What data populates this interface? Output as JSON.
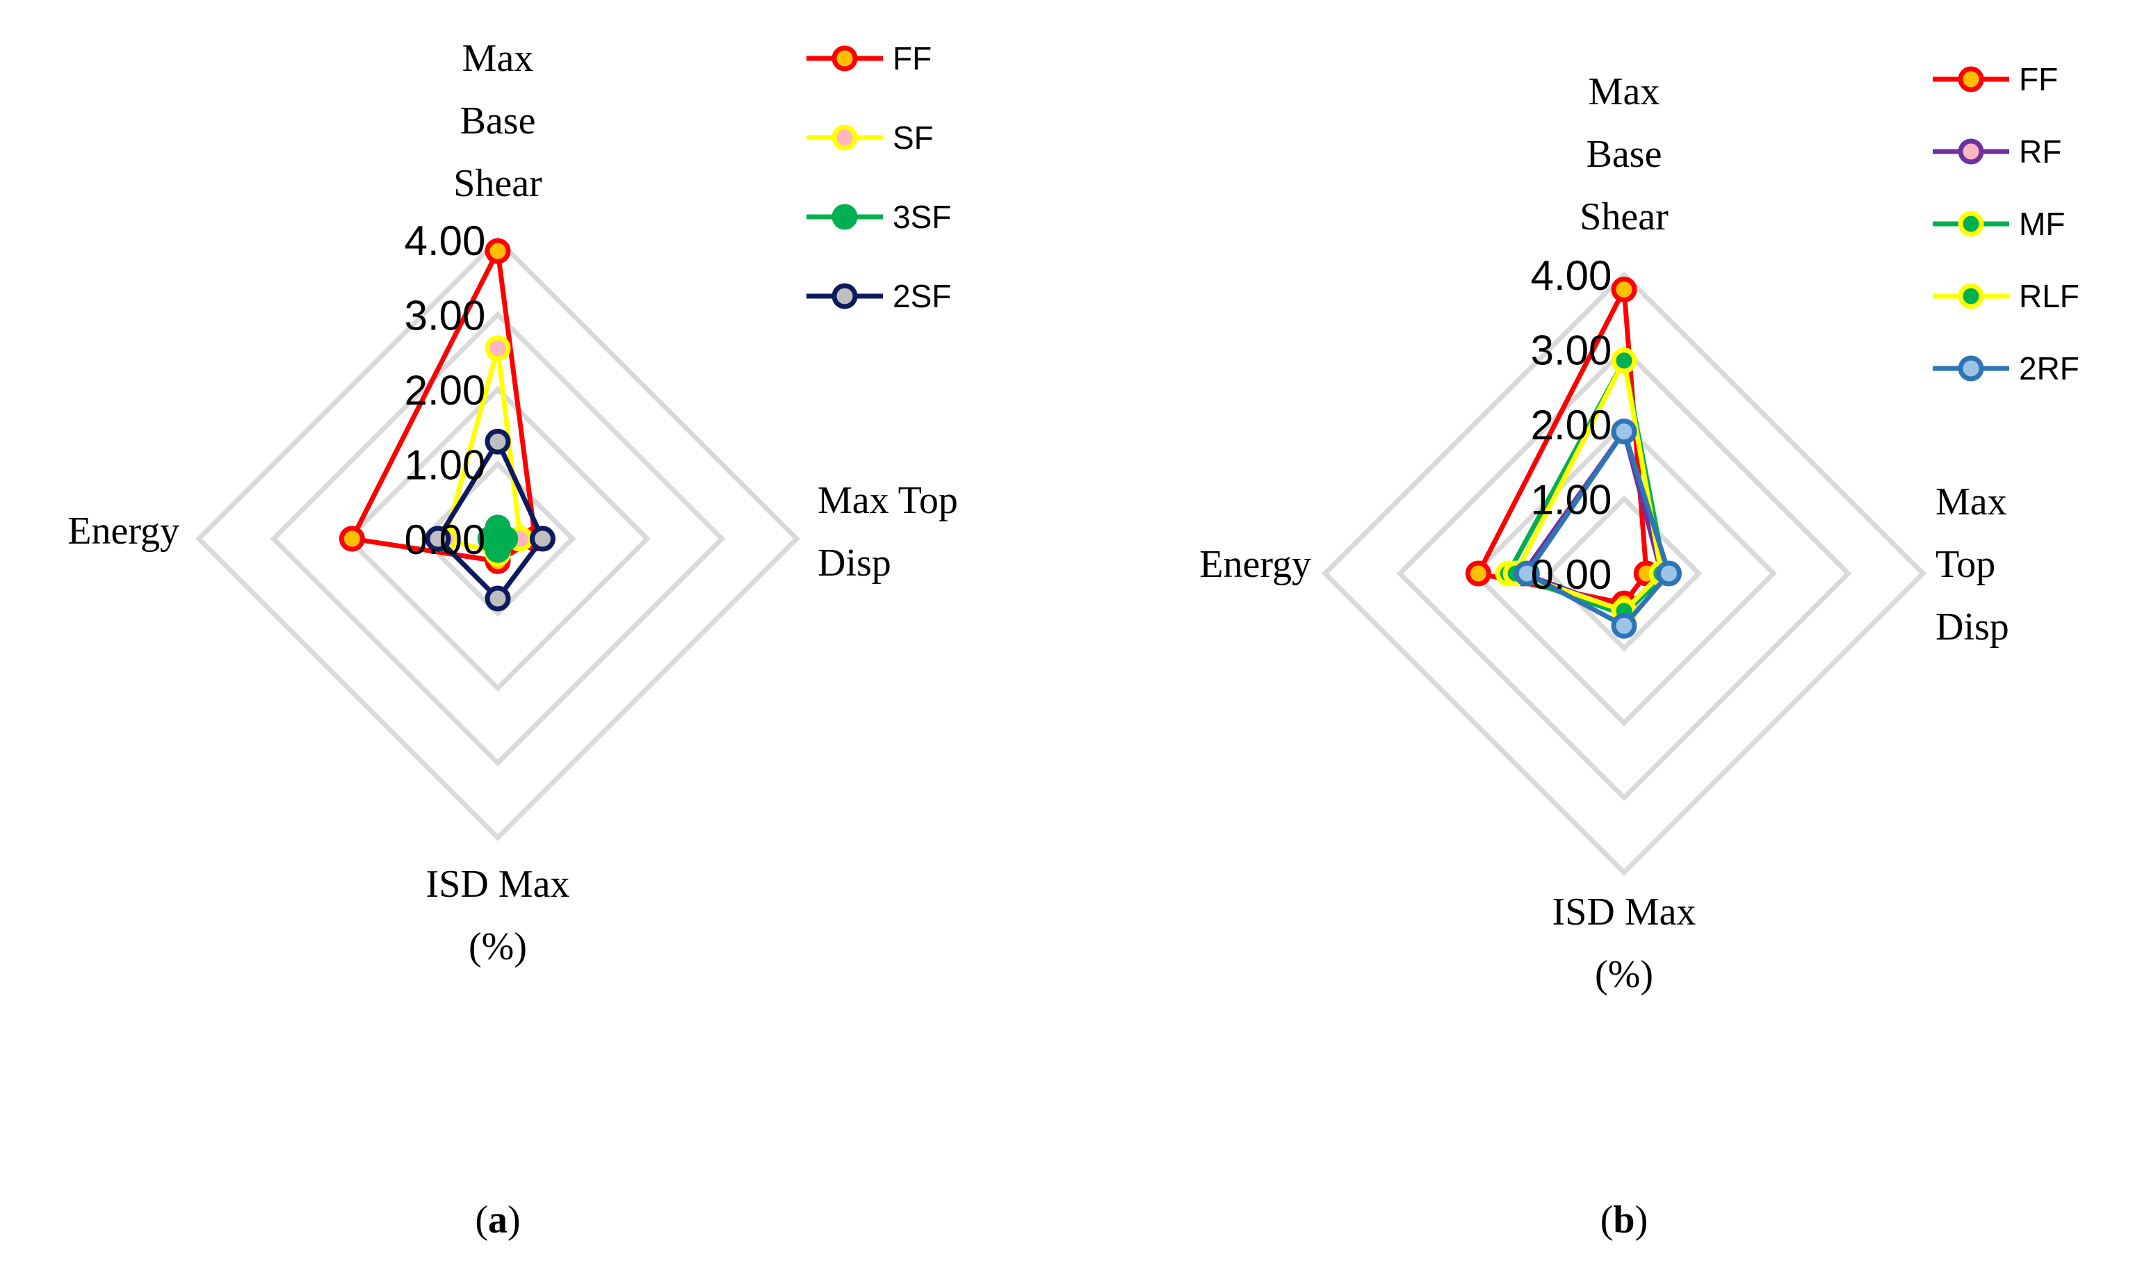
{
  "chart_data": [
    {
      "type": "radar",
      "panel_label": "a",
      "axes": [
        "Max\nBase\nShear",
        "Max Top\nDisp",
        "ISD Max\n(%)",
        "Energy"
      ],
      "rlim": [
        0,
        4
      ],
      "tick_labels": [
        "0.00",
        "1.00",
        "2.00",
        "3.00",
        "4.00"
      ],
      "grid": true,
      "legend_position": "top-right",
      "series": [
        {
          "name": "FF",
          "values": [
            3.85,
            0.5,
            0.3,
            1.95
          ],
          "line_color": "#ff0000",
          "marker_fill": "#ffc000",
          "marker_edge": "#ff0000"
        },
        {
          "name": "SF",
          "values": [
            2.55,
            0.3,
            0.2,
            0.7
          ],
          "line_color": "#ffff00",
          "marker_fill": "#ffb6c1",
          "marker_edge": "#ffff00"
        },
        {
          "name": "3SF",
          "values": [
            0.15,
            0.1,
            0.15,
            0.1
          ],
          "line_color": "#00b050",
          "marker_fill": "#00b050",
          "marker_edge": "#00b050"
        },
        {
          "name": "2SF",
          "values": [
            1.3,
            0.6,
            0.8,
            0.8
          ],
          "line_color": "#0d1b5e",
          "marker_fill": "#bfbfbf",
          "marker_edge": "#0d1b5e"
        }
      ]
    },
    {
      "type": "radar",
      "panel_label": "b",
      "axes": [
        "Max\nBase\nShear",
        "Max\nTop\nDisp",
        "ISD Max\n(%)",
        "Energy"
      ],
      "rlim": [
        0,
        4
      ],
      "tick_labels": [
        "0.00",
        "1.00",
        "2.00",
        "3.00",
        "4.00"
      ],
      "grid": true,
      "legend_position": "top-right",
      "series": [
        {
          "name": "FF",
          "values": [
            3.8,
            0.3,
            0.4,
            1.95
          ],
          "line_color": "#ff0000",
          "marker_fill": "#ffc000",
          "marker_edge": "#ff0000"
        },
        {
          "name": "RF",
          "values": [
            1.9,
            0.5,
            0.5,
            1.35
          ],
          "line_color": "#7030a0",
          "marker_fill": "#ffb6c1",
          "marker_edge": "#7030a0"
        },
        {
          "name": "MF",
          "values": [
            2.85,
            0.55,
            0.55,
            1.55
          ],
          "line_color": "#00b050",
          "marker_fill": "#00b050",
          "marker_edge": "#ffff00"
        },
        {
          "name": "RLF",
          "values": [
            2.85,
            0.5,
            0.5,
            1.45
          ],
          "line_color": "#ffff00",
          "marker_fill": "#00b050",
          "marker_edge": "#ffff00"
        },
        {
          "name": "2RF",
          "values": [
            1.9,
            0.6,
            0.7,
            1.3
          ],
          "line_color": "#2e75b6",
          "marker_fill": "#9dc3e6",
          "marker_edge": "#2e75b6"
        }
      ]
    }
  ],
  "labels": {
    "panel_a": "(a)",
    "panel_b": "(b)"
  }
}
